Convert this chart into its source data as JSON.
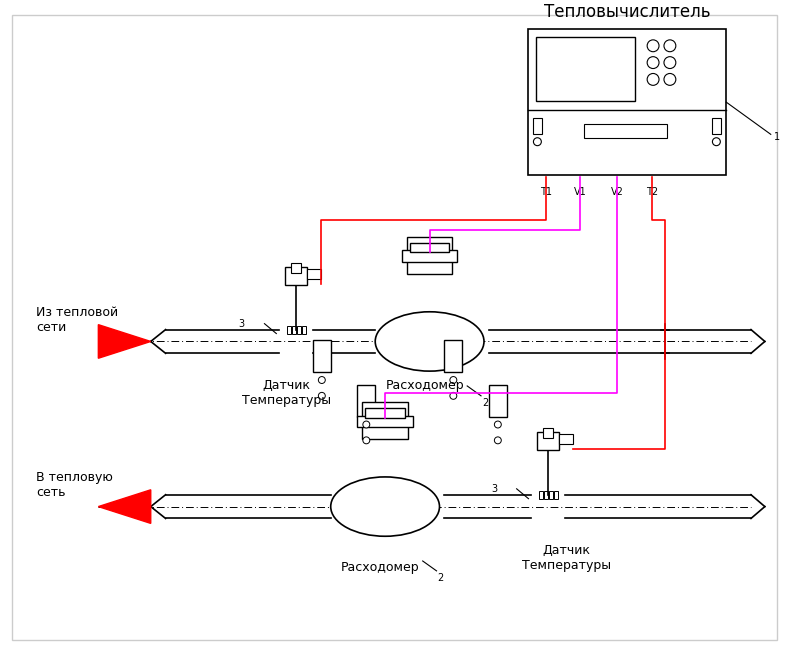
{
  "title": "Тепловычислитель",
  "label_iz": "Из тепловой\nсети",
  "label_v": "В тепловую\nсеть",
  "label_dt1": "Датчик\nТемпературы",
  "label_dt2": "Датчик\nТемпературы",
  "label_rash1": "Расходомер",
  "label_rash2": "Расходомер",
  "label_t1": "T1",
  "label_v1": "V1",
  "label_v2": "V2",
  "label_t2": "T2",
  "label_1_main": "1",
  "label_2_rash1": "2",
  "label_2_rash2": "2",
  "label_3_dt1": "3",
  "label_3_dt2": "3",
  "bg_color": "#ffffff",
  "pipe_color": "#000000",
  "red_wire": "#ff0000",
  "magenta_wire": "#ff00ff",
  "arrow_color": "#ff0000",
  "font_size_title": 12,
  "font_size_label": 9,
  "font_size_small": 7
}
